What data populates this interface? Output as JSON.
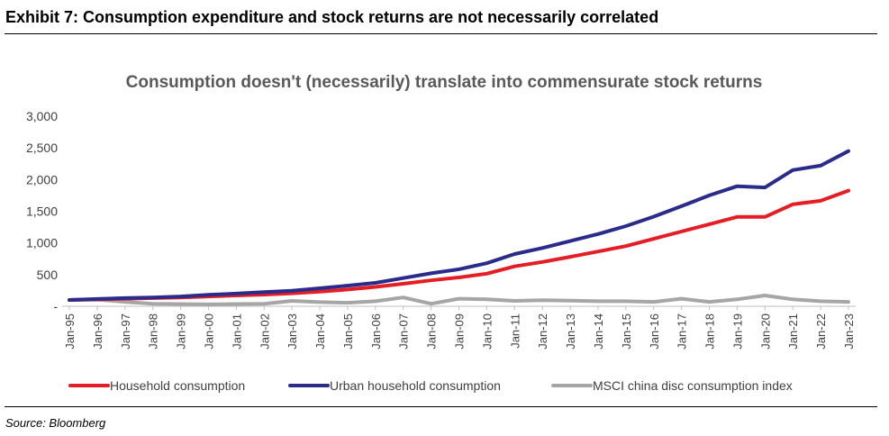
{
  "header": {
    "exhibit_title": "Exhibit 7: Consumption expenditure and stock returns are not necessarily correlated"
  },
  "footer": {
    "source": "Source: Bloomberg"
  },
  "chart_data": {
    "type": "line",
    "title": "Consumption doesn't (necessarily) translate into commensurate stock returns",
    "xlabel": "",
    "ylabel": "",
    "ylim": [
      0,
      3000
    ],
    "yticks": [
      "-",
      "500",
      "1,000",
      "1,500",
      "2,000",
      "2,500",
      "3,000"
    ],
    "grid": false,
    "legend_position": "bottom",
    "categories": [
      "Jan-95",
      "Jan-96",
      "Jan-97",
      "Jan-98",
      "Jan-99",
      "Jan-00",
      "Jan-01",
      "Jan-02",
      "Jan-03",
      "Jan-04",
      "Jan-05",
      "Jan-06",
      "Jan-07",
      "Jan-08",
      "Jan-09",
      "Jan-10",
      "Jan-11",
      "Jan-12",
      "Jan-13",
      "Jan-14",
      "Jan-15",
      "Jan-16",
      "Jan-17",
      "Jan-18",
      "Jan-19",
      "Jan-20",
      "Jan-21",
      "Jan-22",
      "Jan-23"
    ],
    "series": [
      {
        "name": "Household consumption",
        "color": "#e31e24",
        "values": [
          100,
          110,
          120,
          130,
          140,
          155,
          170,
          185,
          205,
          230,
          265,
          305,
          355,
          410,
          455,
          515,
          630,
          700,
          780,
          865,
          950,
          1065,
          1180,
          1295,
          1410,
          1410,
          1610,
          1665,
          1825
        ]
      },
      {
        "name": "Urban household consumption",
        "color": "#2b2b8c",
        "values": [
          100,
          115,
          130,
          140,
          155,
          180,
          200,
          225,
          245,
          285,
          325,
          370,
          445,
          520,
          585,
          680,
          825,
          920,
          1030,
          1140,
          1265,
          1415,
          1580,
          1750,
          1895,
          1875,
          2150,
          2220,
          2450
        ]
      },
      {
        "name": "MSCI china disc consumption index",
        "color": "#a6a6a6",
        "values": [
          100,
          105,
          70,
          40,
          35,
          30,
          35,
          40,
          85,
          65,
          55,
          80,
          140,
          40,
          120,
          110,
          85,
          95,
          90,
          80,
          80,
          70,
          120,
          70,
          110,
          170,
          110,
          80,
          70
        ]
      }
    ]
  }
}
